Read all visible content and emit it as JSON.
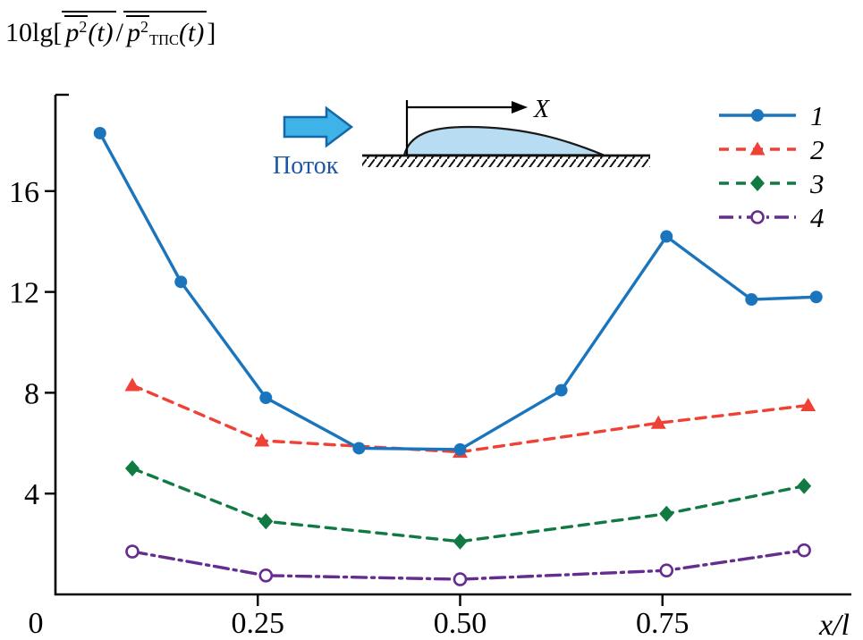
{
  "title": {
    "prefix": "10lg[",
    "num_base": "p",
    "num_sup": "2",
    "num_arg": "(t)",
    "slash": "/",
    "den_base": "p",
    "den_sup": "2",
    "den_sub": "ТПС",
    "den_arg": "(t)",
    "suffix": "]"
  },
  "inset": {
    "flow_label": "Поток",
    "x_label": "X",
    "arrow_fill": "#3fb3e8",
    "arrow_stroke": "#1567a8",
    "hump_fill": "#b8dcf2",
    "flow_label_color": "#1c56a5"
  },
  "chart_data": {
    "type": "line",
    "title": "10lg[p²(t)/p²ТПС(t)]",
    "xlabel": "x/l",
    "ylabel": "",
    "xlim": [
      0,
      0.98
    ],
    "ylim": [
      0,
      19.8
    ],
    "grid": false,
    "legend_position": "top-right",
    "origin_label": "0",
    "x_ticks": [
      {
        "value": 0.25,
        "label": "0.25"
      },
      {
        "value": 0.5,
        "label": "0.50"
      },
      {
        "value": 0.75,
        "label": "0.75"
      }
    ],
    "y_ticks": [
      {
        "value": 4,
        "label": "4"
      },
      {
        "value": 8,
        "label": "8"
      },
      {
        "value": 12,
        "label": "12"
      },
      {
        "value": 16,
        "label": "16"
      }
    ],
    "series": [
      {
        "name": "1",
        "color": "#1b75bc",
        "line": "solid",
        "marker": "circle-filled",
        "x": [
          0.055,
          0.155,
          0.26,
          0.375,
          0.5,
          0.625,
          0.755,
          0.86,
          0.94
        ],
        "y": [
          18.3,
          12.4,
          7.8,
          5.8,
          5.75,
          8.1,
          14.2,
          11.7,
          11.8
        ]
      },
      {
        "name": "2",
        "color": "#ef4136",
        "line": "dashed",
        "marker": "triangle-filled",
        "x": [
          0.095,
          0.255,
          0.5,
          0.745,
          0.93
        ],
        "y": [
          8.3,
          6.1,
          5.65,
          6.8,
          7.5
        ]
      },
      {
        "name": "3",
        "color": "#107a42",
        "line": "dashed",
        "marker": "diamond-filled",
        "x": [
          0.095,
          0.26,
          0.5,
          0.755,
          0.925
        ],
        "y": [
          5.0,
          2.9,
          2.1,
          3.2,
          4.3
        ]
      },
      {
        "name": "4",
        "color": "#662d91",
        "line": "dashdot",
        "marker": "circle-open",
        "x": [
          0.095,
          0.26,
          0.5,
          0.755,
          0.925
        ],
        "y": [
          1.7,
          0.75,
          0.6,
          0.95,
          1.75
        ]
      }
    ]
  }
}
